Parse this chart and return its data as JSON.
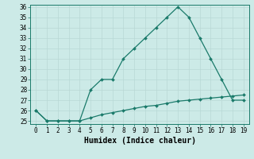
{
  "xlabel": "Humidex (Indice chaleur)",
  "ylabel": "",
  "x": [
    0,
    1,
    2,
    3,
    4,
    5,
    6,
    7,
    8,
    9,
    10,
    11,
    12,
    13,
    14,
    15,
    16,
    17,
    18,
    19
  ],
  "line1": [
    26,
    25,
    25,
    25,
    25,
    28,
    29,
    29,
    31,
    32,
    33,
    34,
    35,
    36,
    35,
    33,
    31,
    29,
    27,
    27
  ],
  "line2": [
    26,
    25,
    25,
    25,
    25,
    25.3,
    25.6,
    25.8,
    26.0,
    26.2,
    26.4,
    26.5,
    26.7,
    26.9,
    27.0,
    27.1,
    27.2,
    27.3,
    27.4,
    27.5
  ],
  "line_color": "#1a7a6a",
  "bg_color": "#cceae7",
  "grid_color": "#b8d8d5",
  "ylim": [
    25,
    36
  ],
  "yticks": [
    25,
    26,
    27,
    28,
    29,
    30,
    31,
    32,
    33,
    34,
    35,
    36
  ],
  "xlim": [
    -0.5,
    19.5
  ],
  "tick_fontsize": 5.5,
  "xlabel_fontsize": 7.0,
  "marker": "D",
  "markersize": 2.0,
  "linewidth": 0.9
}
